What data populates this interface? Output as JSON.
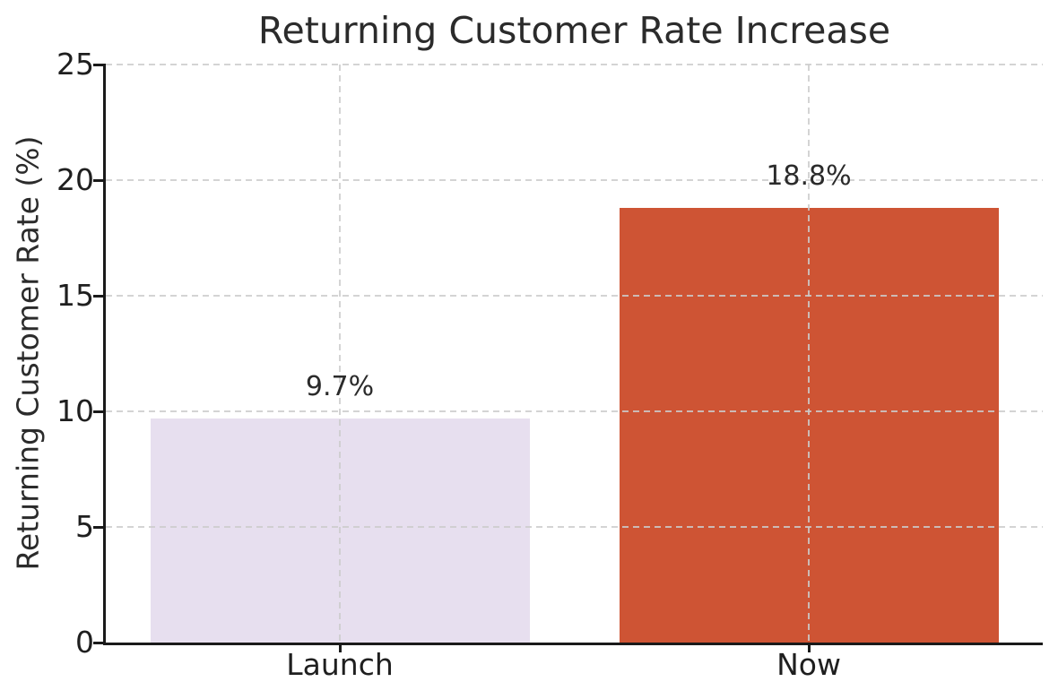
{
  "chart_data": {
    "type": "bar",
    "title": "Returning Customer Rate Increase",
    "xlabel": "",
    "ylabel": "Returning Customer Rate (%)",
    "categories": [
      "Launch",
      "Now"
    ],
    "values": [
      9.7,
      18.8
    ],
    "value_labels": [
      "9.7%",
      "18.8%"
    ],
    "bar_colors": [
      "#E7DFEF",
      "#CE5434"
    ],
    "ylim": [
      0,
      25
    ],
    "yticks": [
      0,
      5,
      10,
      15,
      20,
      25
    ],
    "grid": "dashed",
    "grid_on": true,
    "grid_color": "#cccccc",
    "legend": "none",
    "axis_color": "#1a1a1a",
    "text_color": "#2b2b2b",
    "background_color": "#ffffff"
  }
}
